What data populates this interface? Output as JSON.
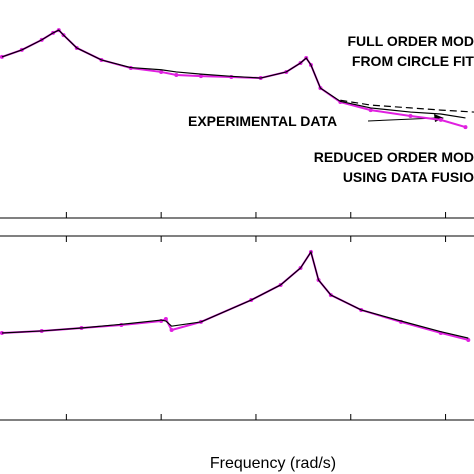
{
  "chart_data": [
    {
      "type": "line",
      "xlim": [
        0.3,
        5.3
      ],
      "ylim": [
        0,
        10
      ],
      "xticks": [
        1,
        2,
        3,
        4,
        5
      ],
      "annotations": [
        "FULL ORDER MOD",
        "FROM CIRCLE FIT",
        "EXPERIMENTAL DATA",
        "REDUCED ORDER MOD",
        "USING DATA FUSIO"
      ],
      "series": [
        {
          "color": "#e020e0",
          "markers": true,
          "dashed": false,
          "x": [
            0.32,
            0.53,
            0.74,
            0.86,
            0.92,
            0.97,
            1.11,
            1.37,
            1.68,
            2.0,
            2.16,
            2.42,
            2.74,
            3.05,
            3.32,
            3.47,
            3.53,
            3.58,
            3.68,
            3.89,
            4.21,
            4.63,
            4.95,
            5.21
          ],
          "values": [
            7.39,
            7.71,
            8.17,
            8.49,
            8.62,
            8.39,
            7.8,
            7.25,
            6.88,
            6.7,
            6.56,
            6.51,
            6.47,
            6.42,
            6.7,
            7.11,
            7.34,
            7.02,
            5.96,
            5.32,
            4.95,
            4.68,
            4.5,
            4.17
          ]
        },
        {
          "color": "#000000",
          "markers": false,
          "dashed": false,
          "x": [
            0.32,
            0.53,
            0.74,
            0.86,
            0.92,
            0.97,
            1.11,
            1.37,
            1.68,
            2.0,
            2.16,
            2.42,
            2.74,
            3.05,
            3.32,
            3.47,
            3.53,
            3.58,
            3.68,
            3.89,
            4.21,
            4.63,
            4.95,
            5.21
          ],
          "values": [
            7.39,
            7.71,
            8.17,
            8.49,
            8.62,
            8.39,
            7.8,
            7.25,
            6.9,
            6.8,
            6.7,
            6.6,
            6.5,
            6.42,
            6.7,
            7.11,
            7.34,
            7.02,
            5.96,
            5.35,
            5.05,
            4.86,
            4.77,
            4.59
          ]
        },
        {
          "color": "#000000",
          "markers": false,
          "dashed": true,
          "x": [
            3.89,
            4.21,
            4.63,
            4.95,
            5.3
          ],
          "values": [
            5.4,
            5.18,
            5.05,
            4.95,
            4.86
          ]
        }
      ]
    },
    {
      "type": "line",
      "xlim": [
        0.3,
        5.3
      ],
      "ylim": [
        0,
        10
      ],
      "xticks": [
        1,
        2,
        3,
        4,
        5
      ],
      "xlabel": "Frequency (rad/s)",
      "series": [
        {
          "color": "#e020e0",
          "markers": true,
          "dashed": false,
          "x": [
            0.32,
            0.74,
            1.16,
            1.58,
            2.0,
            2.05,
            2.11,
            2.42,
            2.95,
            3.26,
            3.47,
            3.58,
            3.66,
            3.79,
            4.11,
            4.53,
            4.95,
            5.24
          ],
          "values": [
            4.73,
            4.84,
            5.0,
            5.16,
            5.38,
            5.49,
            4.89,
            5.33,
            6.52,
            7.34,
            8.26,
            9.13,
            7.61,
            6.79,
            5.98,
            5.33,
            4.73,
            4.35
          ]
        },
        {
          "color": "#000000",
          "markers": false,
          "dashed": false,
          "x": [
            0.32,
            0.74,
            1.16,
            1.58,
            2.0,
            2.05,
            2.11,
            2.42,
            2.95,
            3.26,
            3.47,
            3.58,
            3.66,
            3.79,
            4.11,
            4.53,
            4.95,
            5.24
          ],
          "values": [
            4.73,
            4.84,
            5.0,
            5.2,
            5.43,
            5.38,
            5.1,
            5.33,
            6.52,
            7.34,
            8.26,
            9.13,
            7.61,
            6.79,
            5.98,
            5.38,
            4.8,
            4.45
          ]
        }
      ]
    }
  ]
}
